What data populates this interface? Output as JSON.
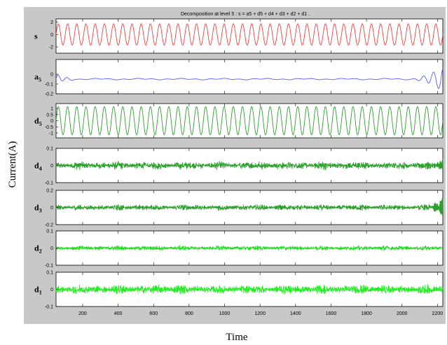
{
  "chart_data": {
    "type": "line",
    "title": "Decomposition at level 5 : s = a5 + d5 + d4 + d3 + d2 + d1 .",
    "xlabel": "Time",
    "ylabel": "Current(A)",
    "xlim": [
      50,
      2230
    ],
    "x_ticks": [
      "200",
      "400",
      "600",
      "800",
      "1000",
      "1200",
      "1400",
      "1600",
      "1800",
      "2000",
      "2200"
    ],
    "grid": false,
    "series": [
      {
        "name": "s",
        "sub": "",
        "color": "#ff3b3b",
        "ylim": [
          -3,
          2.5
        ],
        "y_ticks": [
          "2",
          "0",
          "-2"
        ],
        "kind": "sine",
        "amplitude": 1.7,
        "offset": 0,
        "cycles": 42,
        "noise": 0,
        "end_burst": 0
      },
      {
        "name": "a",
        "sub": "5",
        "color": "#5a5aff",
        "ylim": [
          -0.2,
          0.15
        ],
        "y_ticks": [
          "0",
          "-0.1",
          "-0.2"
        ],
        "kind": "approx",
        "amplitude": 0,
        "offset": -0.05,
        "cycles": 0,
        "noise": 0.004,
        "end_burst": 0.12
      },
      {
        "name": "d",
        "sub": "5",
        "color": "#2ca02c",
        "ylim": [
          -1.4,
          1.4
        ],
        "y_ticks": [
          "1",
          "0.5",
          "0",
          "-0.5",
          "-1"
        ],
        "kind": "sine",
        "amplitude": 1.15,
        "offset": 0,
        "cycles": 42,
        "noise": 0,
        "end_burst": 0
      },
      {
        "name": "d",
        "sub": "4",
        "color": "#2ca02c",
        "ylim": [
          -0.1,
          0.1
        ],
        "y_ticks": [
          "0.1",
          "0",
          "-0.1"
        ],
        "kind": "noise",
        "amplitude": 0,
        "offset": 0,
        "cycles": 0,
        "noise": 0.008,
        "end_burst": 0.03
      },
      {
        "name": "d",
        "sub": "3",
        "color": "#2ca02c",
        "ylim": [
          -0.2,
          0.2
        ],
        "y_ticks": [
          "0.2",
          "0",
          "-0.2"
        ],
        "kind": "noise",
        "amplitude": 0,
        "offset": 0,
        "cycles": 0,
        "noise": 0.012,
        "end_burst": 0.1
      },
      {
        "name": "d",
        "sub": "2",
        "color": "#22dd22",
        "ylim": [
          -0.1,
          0.1
        ],
        "y_ticks": [
          "0.1",
          "0",
          "-0.1"
        ],
        "kind": "noise",
        "amplitude": 0,
        "offset": 0,
        "cycles": 0,
        "noise": 0.005,
        "end_burst": 0
      },
      {
        "name": "d",
        "sub": "1",
        "color": "#22ee22",
        "ylim": [
          -0.1,
          0.1
        ],
        "y_ticks": [
          "0.1",
          "0",
          "-0.1"
        ],
        "kind": "noise",
        "amplitude": 0,
        "offset": 0,
        "cycles": 0,
        "noise": 0.009,
        "end_burst": 0
      }
    ]
  }
}
